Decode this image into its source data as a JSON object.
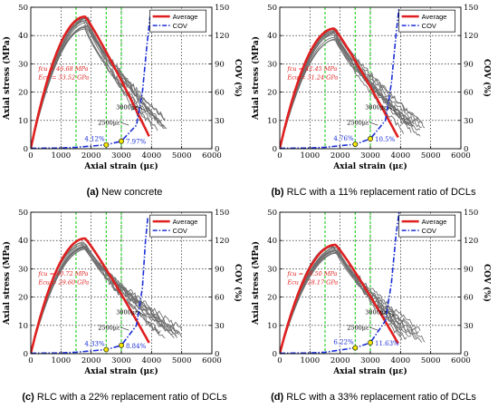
{
  "chart_data": [
    {
      "type": "line",
      "panel_letter": "(a)",
      "caption": "New concrete",
      "xlabel": "Axial strain (με)",
      "ylabel": "Axial stress (MPa)",
      "y2label": "COV (%)",
      "xlim": [
        0,
        6000
      ],
      "ylim": [
        0,
        50
      ],
      "y2lim": [
        0,
        150
      ],
      "xticks": [
        0,
        1000,
        2000,
        3000,
        4000,
        5000,
        6000
      ],
      "yticks": [
        0,
        10,
        20,
        30,
        40,
        50
      ],
      "y2ticks": [
        0,
        30,
        60,
        90,
        120,
        150
      ],
      "legend": [
        "Average",
        "COV"
      ],
      "legend_position": "top-right",
      "grid": true,
      "guide_lines_x": [
        1500,
        2500,
        3000
      ],
      "peak_stress": 46.68,
      "peak_strain": 1800,
      "end_strain": 4300,
      "end_stress": 7,
      "cov_points": [
        [
          0,
          0.5
        ],
        [
          1000,
          0.8
        ],
        [
          1500,
          1.5
        ],
        [
          2500,
          4.12
        ],
        [
          3000,
          7.97
        ],
        [
          3500,
          25
        ],
        [
          3700,
          60
        ],
        [
          3850,
          110
        ],
        [
          3950,
          140
        ]
      ],
      "annotations": {
        "fc_text": "fcu = 46.68 MPa",
        "ec_text": "Ecu = 33.52 GPa",
        "strain_3000": "3000με",
        "strain_2500": "2500με",
        "cov_2500": "4.12%",
        "cov_3000": "7.97%"
      },
      "series": [
        {
          "name": "Average",
          "color": "#e02020"
        },
        {
          "name": "COV",
          "color": "#1a2fd6"
        }
      ]
    },
    {
      "type": "line",
      "panel_letter": "(b)",
      "caption": "RLC with a 11% replacement ratio of DCLs",
      "xlabel": "Axial strain (με)",
      "ylabel": "Axial stress (MPa)",
      "y2label": "COV (%)",
      "xlim": [
        0,
        6000
      ],
      "ylim": [
        0,
        50
      ],
      "y2lim": [
        0,
        150
      ],
      "xticks": [
        0,
        1000,
        2000,
        3000,
        4000,
        5000,
        6000
      ],
      "yticks": [
        0,
        10,
        20,
        30,
        40,
        50
      ],
      "y2ticks": [
        0,
        30,
        60,
        90,
        120,
        150
      ],
      "legend": [
        "Average",
        "COV"
      ],
      "legend_position": "top-right",
      "grid": true,
      "guide_lines_x": [
        1500,
        2500,
        3000
      ],
      "peak_stress": 42.45,
      "peak_strain": 1800,
      "end_strain": 4600,
      "end_stress": 6,
      "cov_points": [
        [
          0,
          0.5
        ],
        [
          1000,
          0.8
        ],
        [
          1500,
          1.5
        ],
        [
          2500,
          4.76
        ],
        [
          3000,
          10.5
        ],
        [
          3500,
          30
        ],
        [
          3700,
          70
        ],
        [
          3850,
          120
        ],
        [
          3950,
          150
        ]
      ],
      "annotations": {
        "fc_text": "fcu = 42.45 MPa",
        "ec_text": "Ecu = 31.24 GPa",
        "strain_3000": "3000με",
        "strain_2500": "2500με",
        "cov_2500": "4.76%",
        "cov_3000": "10.5%"
      },
      "series": [
        {
          "name": "Average",
          "color": "#e02020"
        },
        {
          "name": "COV",
          "color": "#1a2fd6"
        }
      ]
    },
    {
      "type": "line",
      "panel_letter": "(c)",
      "caption": "RLC with a 22% replacement ratio of DCLs",
      "xlabel": "Axial strain (με)",
      "ylabel": "Axial stress (MPa)",
      "y2label": "COV (%)",
      "xlim": [
        0,
        6000
      ],
      "ylim": [
        0,
        50
      ],
      "y2lim": [
        0,
        150
      ],
      "xticks": [
        0,
        1000,
        2000,
        3000,
        4000,
        5000,
        6000
      ],
      "yticks": [
        0,
        10,
        20,
        30,
        40,
        50
      ],
      "y2ticks": [
        0,
        30,
        60,
        90,
        120,
        150
      ],
      "legend": [
        "Average",
        "COV"
      ],
      "legend_position": "top-right",
      "grid": true,
      "guide_lines_x": [
        1500,
        2500,
        3000
      ],
      "peak_stress": 40.72,
      "peak_strain": 1800,
      "end_strain": 4800,
      "end_stress": 6,
      "cov_points": [
        [
          0,
          0.5
        ],
        [
          1000,
          0.8
        ],
        [
          1500,
          1.5
        ],
        [
          2500,
          4.33
        ],
        [
          3000,
          8.84
        ],
        [
          3500,
          30
        ],
        [
          3700,
          70
        ],
        [
          3800,
          120
        ],
        [
          3880,
          145
        ]
      ],
      "annotations": {
        "fc_text": "fcu = 40.72 MPa",
        "ec_text": "Ecu = 29.60 GPa",
        "strain_3000": "3000με",
        "strain_2500": "2500με",
        "cov_2500": "4.33%",
        "cov_3000": "8.84%"
      },
      "series": [
        {
          "name": "Average",
          "color": "#e02020"
        },
        {
          "name": "COV",
          "color": "#1a2fd6"
        }
      ]
    },
    {
      "type": "line",
      "panel_letter": "(d)",
      "caption": "RLC with a 33% replacement ratio of DCLs",
      "xlabel": "Axial strain (με)",
      "ylabel": "Axial stress (MPa)",
      "y2label": "COV (%)",
      "xlim": [
        0,
        6000
      ],
      "ylim": [
        0,
        50
      ],
      "y2lim": [
        0,
        150
      ],
      "xticks": [
        0,
        1000,
        2000,
        3000,
        4000,
        5000,
        6000
      ],
      "yticks": [
        0,
        10,
        20,
        30,
        40,
        50
      ],
      "y2ticks": [
        0,
        30,
        60,
        90,
        120,
        150
      ],
      "legend": [
        "Average",
        "COV"
      ],
      "legend_position": "top-right",
      "grid": true,
      "guide_lines_x": [
        1500,
        2500,
        3000
      ],
      "peak_stress": 38.5,
      "peak_strain": 1850,
      "end_strain": 4600,
      "end_stress": 6,
      "cov_points": [
        [
          0,
          0.5
        ],
        [
          1000,
          0.8
        ],
        [
          1500,
          1.5
        ],
        [
          2500,
          6.22
        ],
        [
          3000,
          11.63
        ],
        [
          3500,
          35
        ],
        [
          3700,
          75
        ],
        [
          3850,
          125
        ],
        [
          3950,
          150
        ]
      ],
      "annotations": {
        "fc_text": "fcu = 38.50 MPa",
        "ec_text": "Ecu = 28.17 GPa",
        "strain_3000": "3000με",
        "strain_2500": "2500με",
        "cov_2500": "6.22%",
        "cov_3000": "11.63%"
      },
      "series": [
        {
          "name": "Average",
          "color": "#e02020"
        },
        {
          "name": "COV",
          "color": "#1a2fd6"
        }
      ]
    }
  ]
}
